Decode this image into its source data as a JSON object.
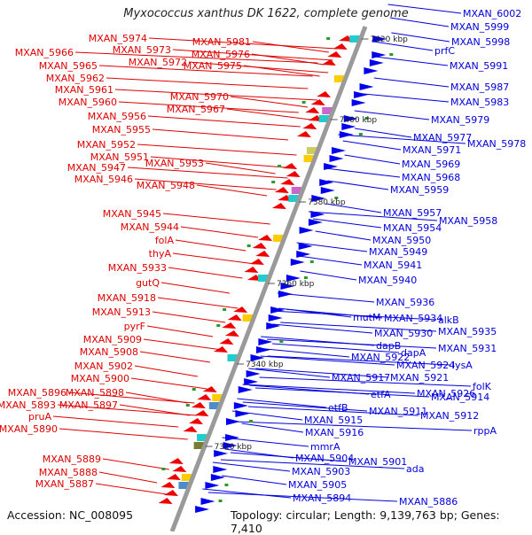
{
  "title": "Myxococcus xanthus DK 1622, complete genome",
  "accession": "Accession: NC_008095",
  "topology": "Topology: circular; Length: 9,139,763 bp; Genes: 7,410",
  "colors": {
    "left_label": "#e00000",
    "right_label": "#0000dd",
    "backbone": "#9a9a9a",
    "tick": "#2a9a2a"
  },
  "kbp_ticks": [
    "7420 kbp",
    "7400 kbp",
    "7380 kbp",
    "7360 kbp",
    "7340 kbp",
    "7320 kbp"
  ],
  "left_genes": [
    "MXAN_5974",
    "MXAN_5981",
    "MXAN_5966",
    "MXAN_5973",
    "MXAN_5976",
    "MXAN_5965",
    "MXAN_5972",
    "MXAN_5975",
    "MXAN_5962",
    "MXAN_5961",
    "MXAN_5970",
    "MXAN_5960",
    "MXAN_5967",
    "MXAN_5956",
    "MXAN_5955",
    "MXAN_5952",
    "MXAN_5951",
    "MXAN_5953",
    "MXAN_5947",
    "MXAN_5946",
    "MXAN_5948",
    "MXAN_5945",
    "MXAN_5944",
    "folA",
    "thyA",
    "MXAN_5933",
    "gutQ",
    "MXAN_5918",
    "MXAN_5913",
    "pyrF",
    "MXAN_5909",
    "MXAN_5908",
    "MXAN_5902",
    "MXAN_5900",
    "MXAN_5896",
    "MXAN_5898",
    "MXAN_5893",
    "MXAN_5897",
    "pruA",
    "MXAN_5890",
    "MXAN_5889",
    "MXAN_5888",
    "MXAN_5887"
  ],
  "right_genes": [
    "MXAN_6002",
    "MXAN_5999",
    "MXAN_5998",
    "prfC",
    "MXAN_5991",
    "MXAN_5987",
    "MXAN_5983",
    "MXAN_5979",
    "MXAN_5977",
    "MXAN_5978",
    "MXAN_5971",
    "MXAN_5969",
    "MXAN_5968",
    "MXAN_5959",
    "MXAN_5957",
    "MXAN_5958",
    "MXAN_5954",
    "MXAN_5950",
    "MXAN_5949",
    "MXAN_5941",
    "MXAN_5940",
    "MXAN_5936",
    "mutM",
    "MXAN_5934",
    "alkB",
    "MXAN_5930",
    "MXAN_5935",
    "dapB",
    "MXAN_5931",
    "dapA",
    "MXAN_5922",
    "MXAN_5924",
    "lysA",
    "MXAN_5917",
    "MXAN_5921",
    "folK",
    "MXAN_5926",
    "etfA",
    "MXAN_5914",
    "etfB",
    "MXAN_5911",
    "MXAN_5912",
    "MXAN_5915",
    "rppA",
    "MXAN_5916",
    "mmrA",
    "MXAN_5904",
    "MXAN_5901",
    "MXAN_5903",
    "ada",
    "MXAN_5905",
    "MXAN_5894",
    "MXAN_5886"
  ]
}
